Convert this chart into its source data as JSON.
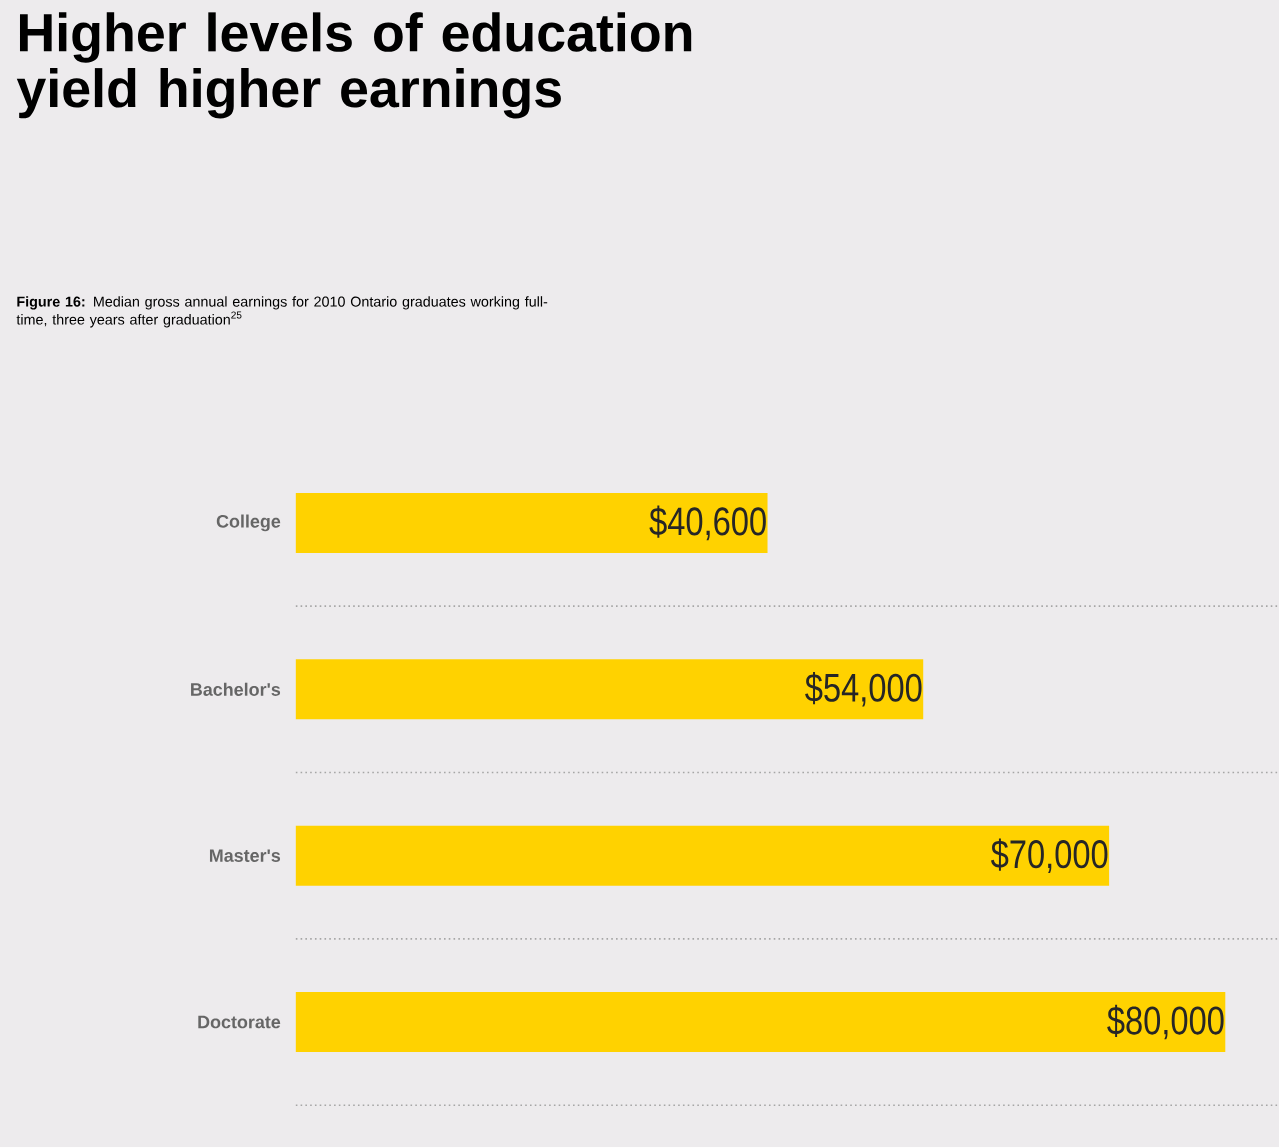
{
  "chart_data": {
    "type": "bar",
    "orientation": "horizontal",
    "title": "Higher levels of education yield higher earnings",
    "subtitle": "**Figure 16:** Median gross annual earnings for 2010 Ontario graduates working full-time, three years after graduation$^{25}$",
    "categories": [
      "College",
      "Bachelor's",
      "Master's",
      "Doctorate"
    ],
    "values": [
      40600,
      54000,
      70000,
      80000
    ],
    "value_labels": [
      "$40,600",
      "$54,000",
      "$70,000",
      "$80,000"
    ],
    "color": "#ffd200",
    "grid": "y",
    "tick_labels": "y"
  }
}
